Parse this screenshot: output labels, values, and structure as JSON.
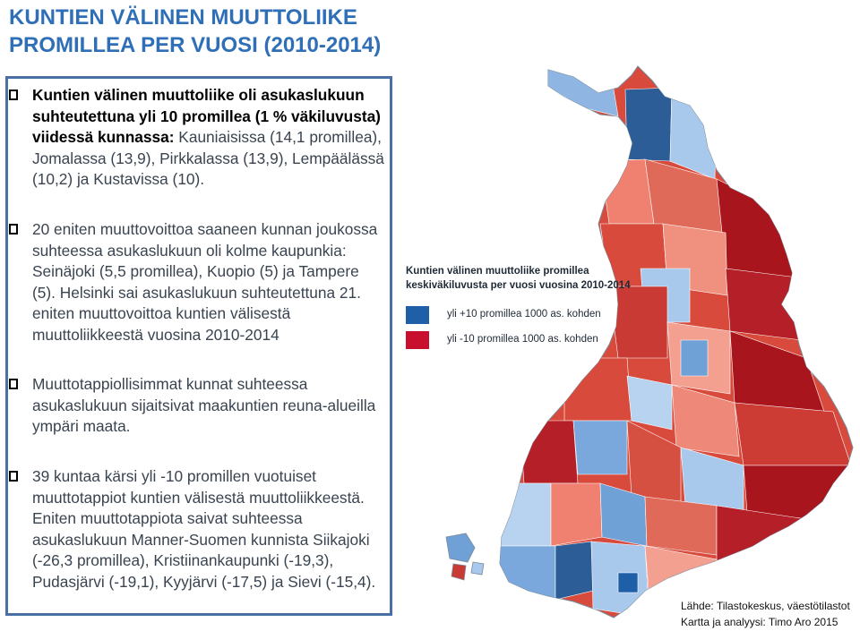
{
  "title": {
    "line1": "KUNTIEN VÄLINEN MUUTTOLIIKE",
    "line2": "PROMILLEA PER VUOSI  (2010-2014)"
  },
  "bullets": [
    {
      "bold": "Kuntien välinen muuttoliike oli asukaslukuun suhteutettuna yli 10 promillea (1 % väkiluvusta) viidessä kunnassa:",
      "text": " Kauniaisissa (14,1 promillea), Jomalassa (13,9), Pirkkalassa (13,9), Lempäälässä (10,2) ja Kustavissa (10)."
    },
    {
      "bold": "",
      "text": "20 eniten muuttovoittoa saaneen kunnan joukossa suhteessa asukaslukuun oli kolme kaupunkia: Seinäjoki (5,5 promillea), Kuopio (5) ja Tampere (5). Helsinki sai asukaslukuun suhteutettuna 21. eniten muuttovoittoa kuntien välisestä muuttoliikkeestä vuosina 2010-2014"
    },
    {
      "bold": "",
      "text": "Muuttotappiollisimmat kunnat suhteessa asukaslukuun sijaitsivat maakuntien reuna-alueilla ympäri maata."
    },
    {
      "bold": "",
      "text": "39 kuntaa kärsi yli -10 promillen vuotuiset muuttotappiot kuntien välisestä muuttoliikkeestä. Eniten muuttotappiota saivat suhteessa asukaslukuun Manner-Suomen kunnista Siikajoki (-26,3 promillea), Kristiinankaupunki (-19,3), Pudasjärvi (-19,1), Kyyjärvi (-17,5) ja Sievi (-15,4)."
    }
  ],
  "legend": {
    "title_line1": "Kuntien välinen muuttoliike promillea",
    "title_line2": "keskiväkiluvusta per vuosi vuosina 2010-2014",
    "items": [
      {
        "label": "yli +10 promillea 1000 as. kohden",
        "color": "#1f5fa8"
      },
      {
        "label": "yli -10 promillea 1000 as. kohden",
        "color": "#c8102e"
      }
    ]
  },
  "source": {
    "line1": "Lähde: Tilastokeskus, väestötilastot",
    "line2": "Kartta ja analyysi: Timo Aro 2015"
  },
  "colors": {
    "title": "#2e6fb7",
    "frame": "#4a6fa5",
    "gain_strong": "#2c5d97",
    "gain_mid": "#6fa0d6",
    "gain_light": "#a9c9ec",
    "loss_light": "#f08070",
    "loss_mid": "#d84a3c",
    "loss_strong": "#a8151c"
  }
}
